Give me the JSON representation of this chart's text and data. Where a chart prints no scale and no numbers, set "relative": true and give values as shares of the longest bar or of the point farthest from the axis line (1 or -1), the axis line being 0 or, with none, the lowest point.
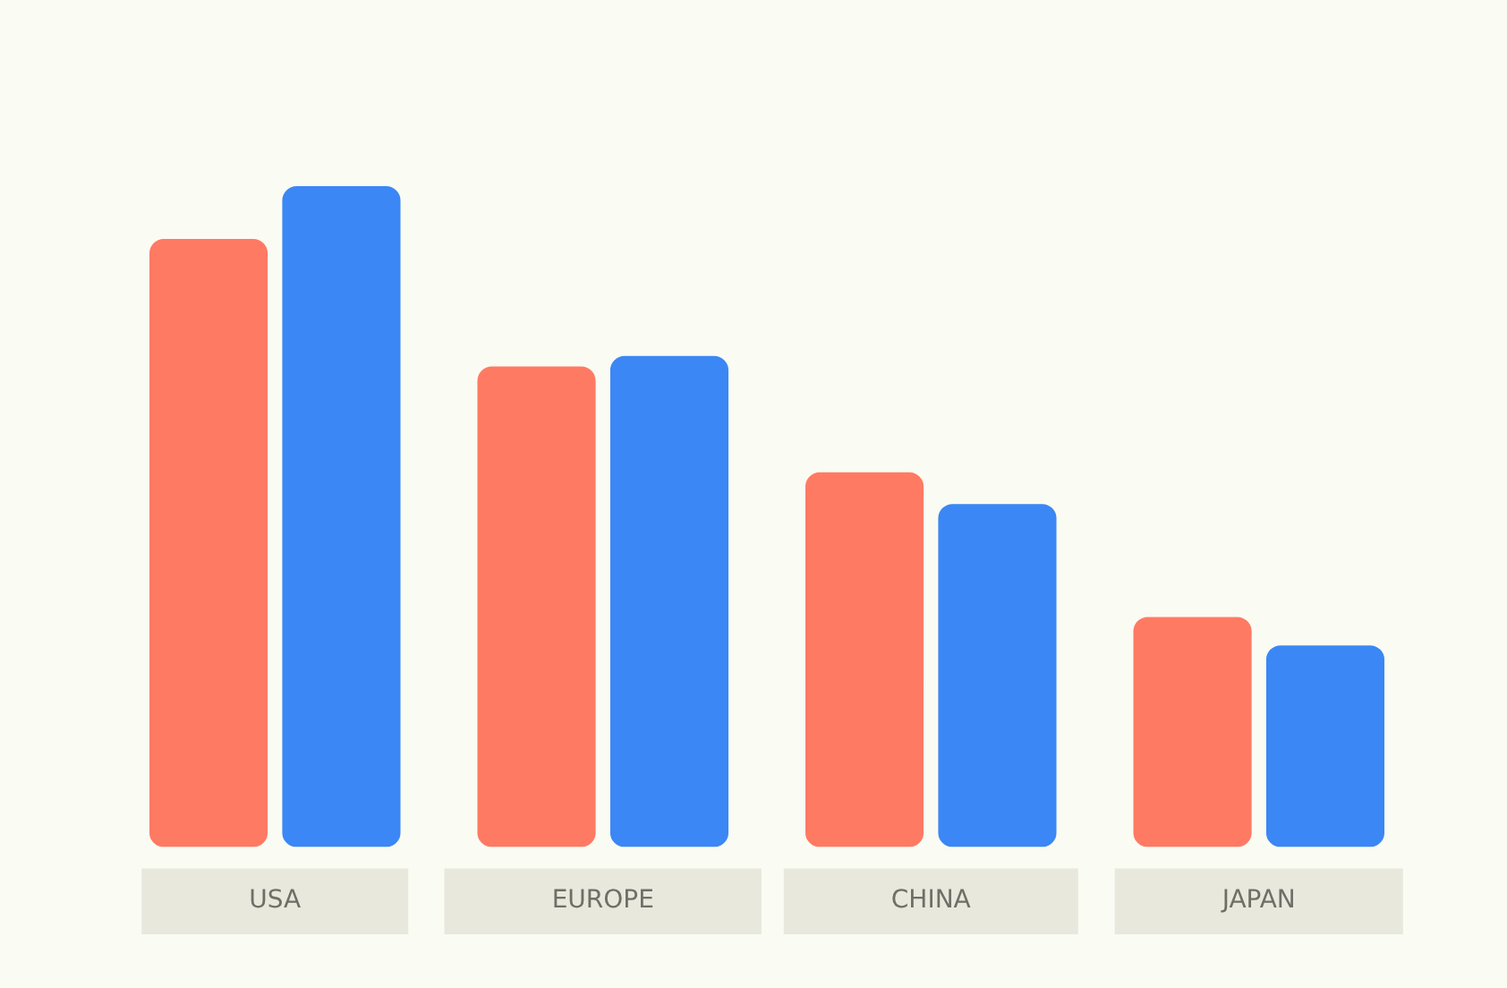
{
  "chart_data": {
    "type": "bar",
    "relative": true,
    "categories": [
      "USA",
      "EUROPE",
      "CHINA",
      "JAPAN"
    ],
    "series": [
      {
        "color": "#ff7a63",
        "values": [
          0.92,
          0.727,
          0.567,
          0.348
        ]
      },
      {
        "color": "#3b87f5",
        "values": [
          1,
          0.743,
          0.519,
          0.305
        ]
      }
    ]
  }
}
